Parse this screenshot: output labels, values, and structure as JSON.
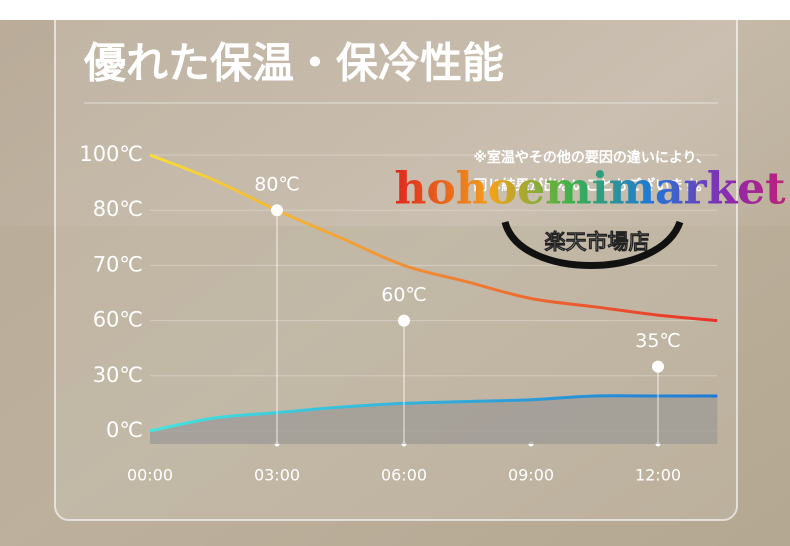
{
  "header": {
    "title": "優れた保温・保冷性能"
  },
  "note": [
    "※室温やその他の要因の違いにより、",
    "同じ結果が出ないこともございます。"
  ],
  "watermark": {
    "brand": "hohoemimarket",
    "store": "楽天市場店"
  },
  "chart_data": {
    "type": "line",
    "x": [
      0,
      1.5,
      3,
      4.5,
      6,
      7.5,
      9,
      10.5,
      12,
      13.4
    ],
    "xlim": [
      0,
      13.4
    ],
    "xticks": [
      {
        "value": 0,
        "label": "00:00"
      },
      {
        "value": 3,
        "label": "03:00"
      },
      {
        "value": 6,
        "label": "06:00"
      },
      {
        "value": 9,
        "label": "09:00"
      },
      {
        "value": 12,
        "label": "12:00"
      }
    ],
    "ylim": [
      0,
      100
    ],
    "yticks": [
      {
        "value": 100,
        "label": "100℃"
      },
      {
        "value": 80,
        "label": "80℃"
      },
      {
        "value": 70,
        "label": "70℃"
      },
      {
        "value": 60,
        "label": "60℃"
      },
      {
        "value": 30,
        "label": "30℃"
      },
      {
        "value": 0,
        "label": "0℃"
      }
    ],
    "grid": true,
    "series": [
      {
        "color": [
          "#f7de3c",
          "#e8302a"
        ],
        "values": [
          100,
          91,
          80,
          75,
          70,
          67,
          64,
          62.5,
          61,
          60
        ]
      },
      {
        "color": [
          "#44e4de",
          "#1e78d8"
        ],
        "fill": "#9c9a96",
        "values": [
          0,
          7,
          10,
          13,
          15,
          16,
          17,
          19,
          19,
          19
        ]
      }
    ],
    "points": {
      "x": [
        3,
        6,
        12
      ],
      "values": [
        80,
        60,
        35
      ],
      "value_labels": [
        "80℃",
        "60℃",
        "35℃"
      ],
      "color": "#ffffff"
    }
  }
}
